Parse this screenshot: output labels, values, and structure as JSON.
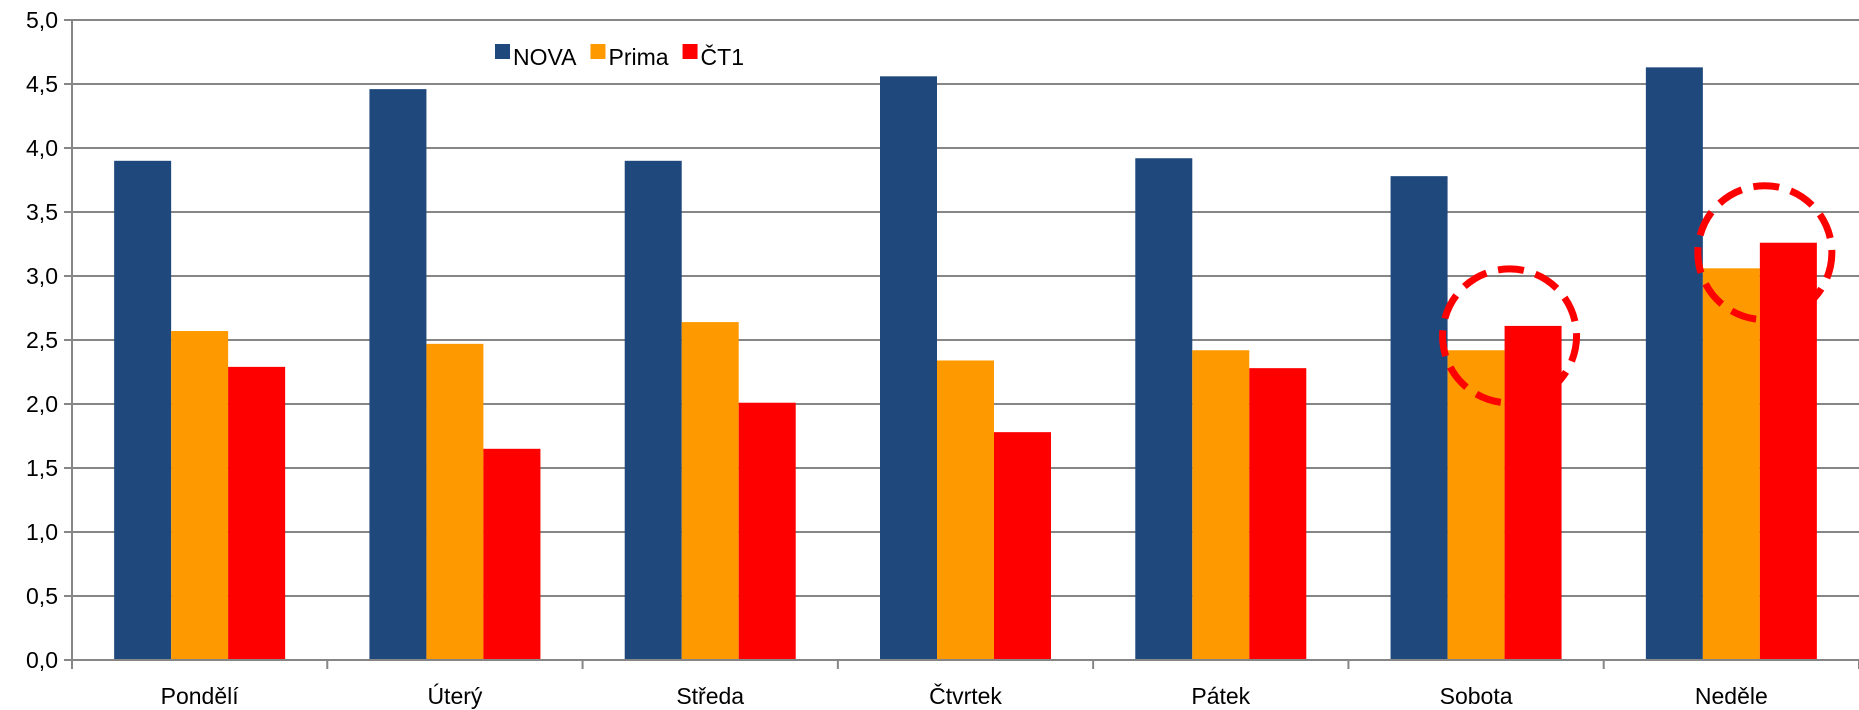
{
  "chart_data": {
    "type": "bar",
    "title": "",
    "xlabel": "",
    "ylabel": "",
    "categories": [
      "Pondělí",
      "Úterý",
      "Středa",
      "Čtvrtek",
      "Pátek",
      "Sobota",
      "Neděle"
    ],
    "series": [
      {
        "name": "NOVA",
        "color": "#1F497D",
        "values": [
          3.9,
          4.46,
          3.9,
          4.56,
          3.92,
          3.78,
          4.63
        ]
      },
      {
        "name": "Prima",
        "color": "#FF9900",
        "values": [
          2.57,
          2.47,
          2.64,
          2.34,
          2.42,
          2.42,
          3.06
        ]
      },
      {
        "name": "ČT1",
        "color": "#FF0000",
        "values": [
          2.29,
          1.65,
          2.01,
          1.78,
          2.28,
          2.61,
          3.26
        ]
      }
    ],
    "ylim": [
      0,
      5
    ],
    "yticks": [
      "0,0",
      "0,5",
      "1,0",
      "1,5",
      "2,0",
      "2,5",
      "3,0",
      "3,5",
      "4,0",
      "4,5",
      "5,0"
    ],
    "grid": true,
    "legend_position": "top-left",
    "highlight_annotation": {
      "style": "dashed red circle",
      "color": "#FF0000",
      "targets": [
        {
          "category": "Sobota",
          "series": [
            "Prima",
            "ČT1"
          ]
        },
        {
          "category": "Neděle",
          "series": [
            "Prima",
            "ČT1"
          ]
        }
      ]
    }
  }
}
